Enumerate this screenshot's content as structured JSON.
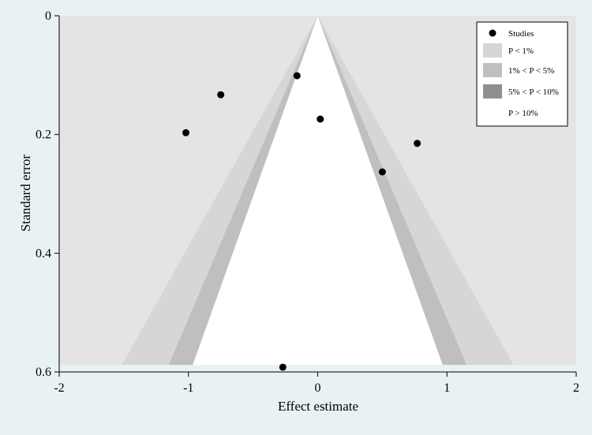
{
  "chart_data": {
    "type": "scatter",
    "subtype": "contour-enhanced funnel plot",
    "xlabel": "Effect estimate",
    "ylabel": "Standard error",
    "xlim": [
      -2,
      2
    ],
    "ylim": [
      0,
      0.6
    ],
    "y_reversed": true,
    "xticks": [
      "-2",
      "-1",
      "0",
      "1",
      "2"
    ],
    "yticks": [
      "0",
      "0.2",
      "0.4",
      "0.6"
    ],
    "xtick_values": [
      -2,
      -1,
      0,
      1,
      2
    ],
    "ytick_values": [
      0,
      0.2,
      0.4,
      0.6
    ],
    "contours": [
      {
        "label": "P < 1%",
        "z": 2.576,
        "color": "#d6d6d6"
      },
      {
        "label": "1% < P < 5%",
        "z": 1.96,
        "color": "#bfbfbf"
      },
      {
        "label": "5% < P < 10%",
        "z": 1.645,
        "color": "#8f8f8f"
      },
      {
        "label": "P > 10%",
        "color": "#ffffff"
      }
    ],
    "outer_region_color": "#e4e4e4",
    "legend": {
      "position": "top-right",
      "entries": [
        "Studies",
        "P < 1%",
        "1% < P < 5%",
        "5% < P < 10%",
        "P > 10%"
      ]
    },
    "series": [
      {
        "name": "Studies",
        "points": [
          {
            "x": -1.02,
            "y": 0.197
          },
          {
            "x": -0.75,
            "y": 0.133
          },
          {
            "x": -0.16,
            "y": 0.101
          },
          {
            "x": 0.02,
            "y": 0.174
          },
          {
            "x": 0.77,
            "y": 0.215
          },
          {
            "x": 0.5,
            "y": 0.263
          },
          {
            "x": -0.27,
            "y": 0.592
          }
        ]
      }
    ]
  }
}
